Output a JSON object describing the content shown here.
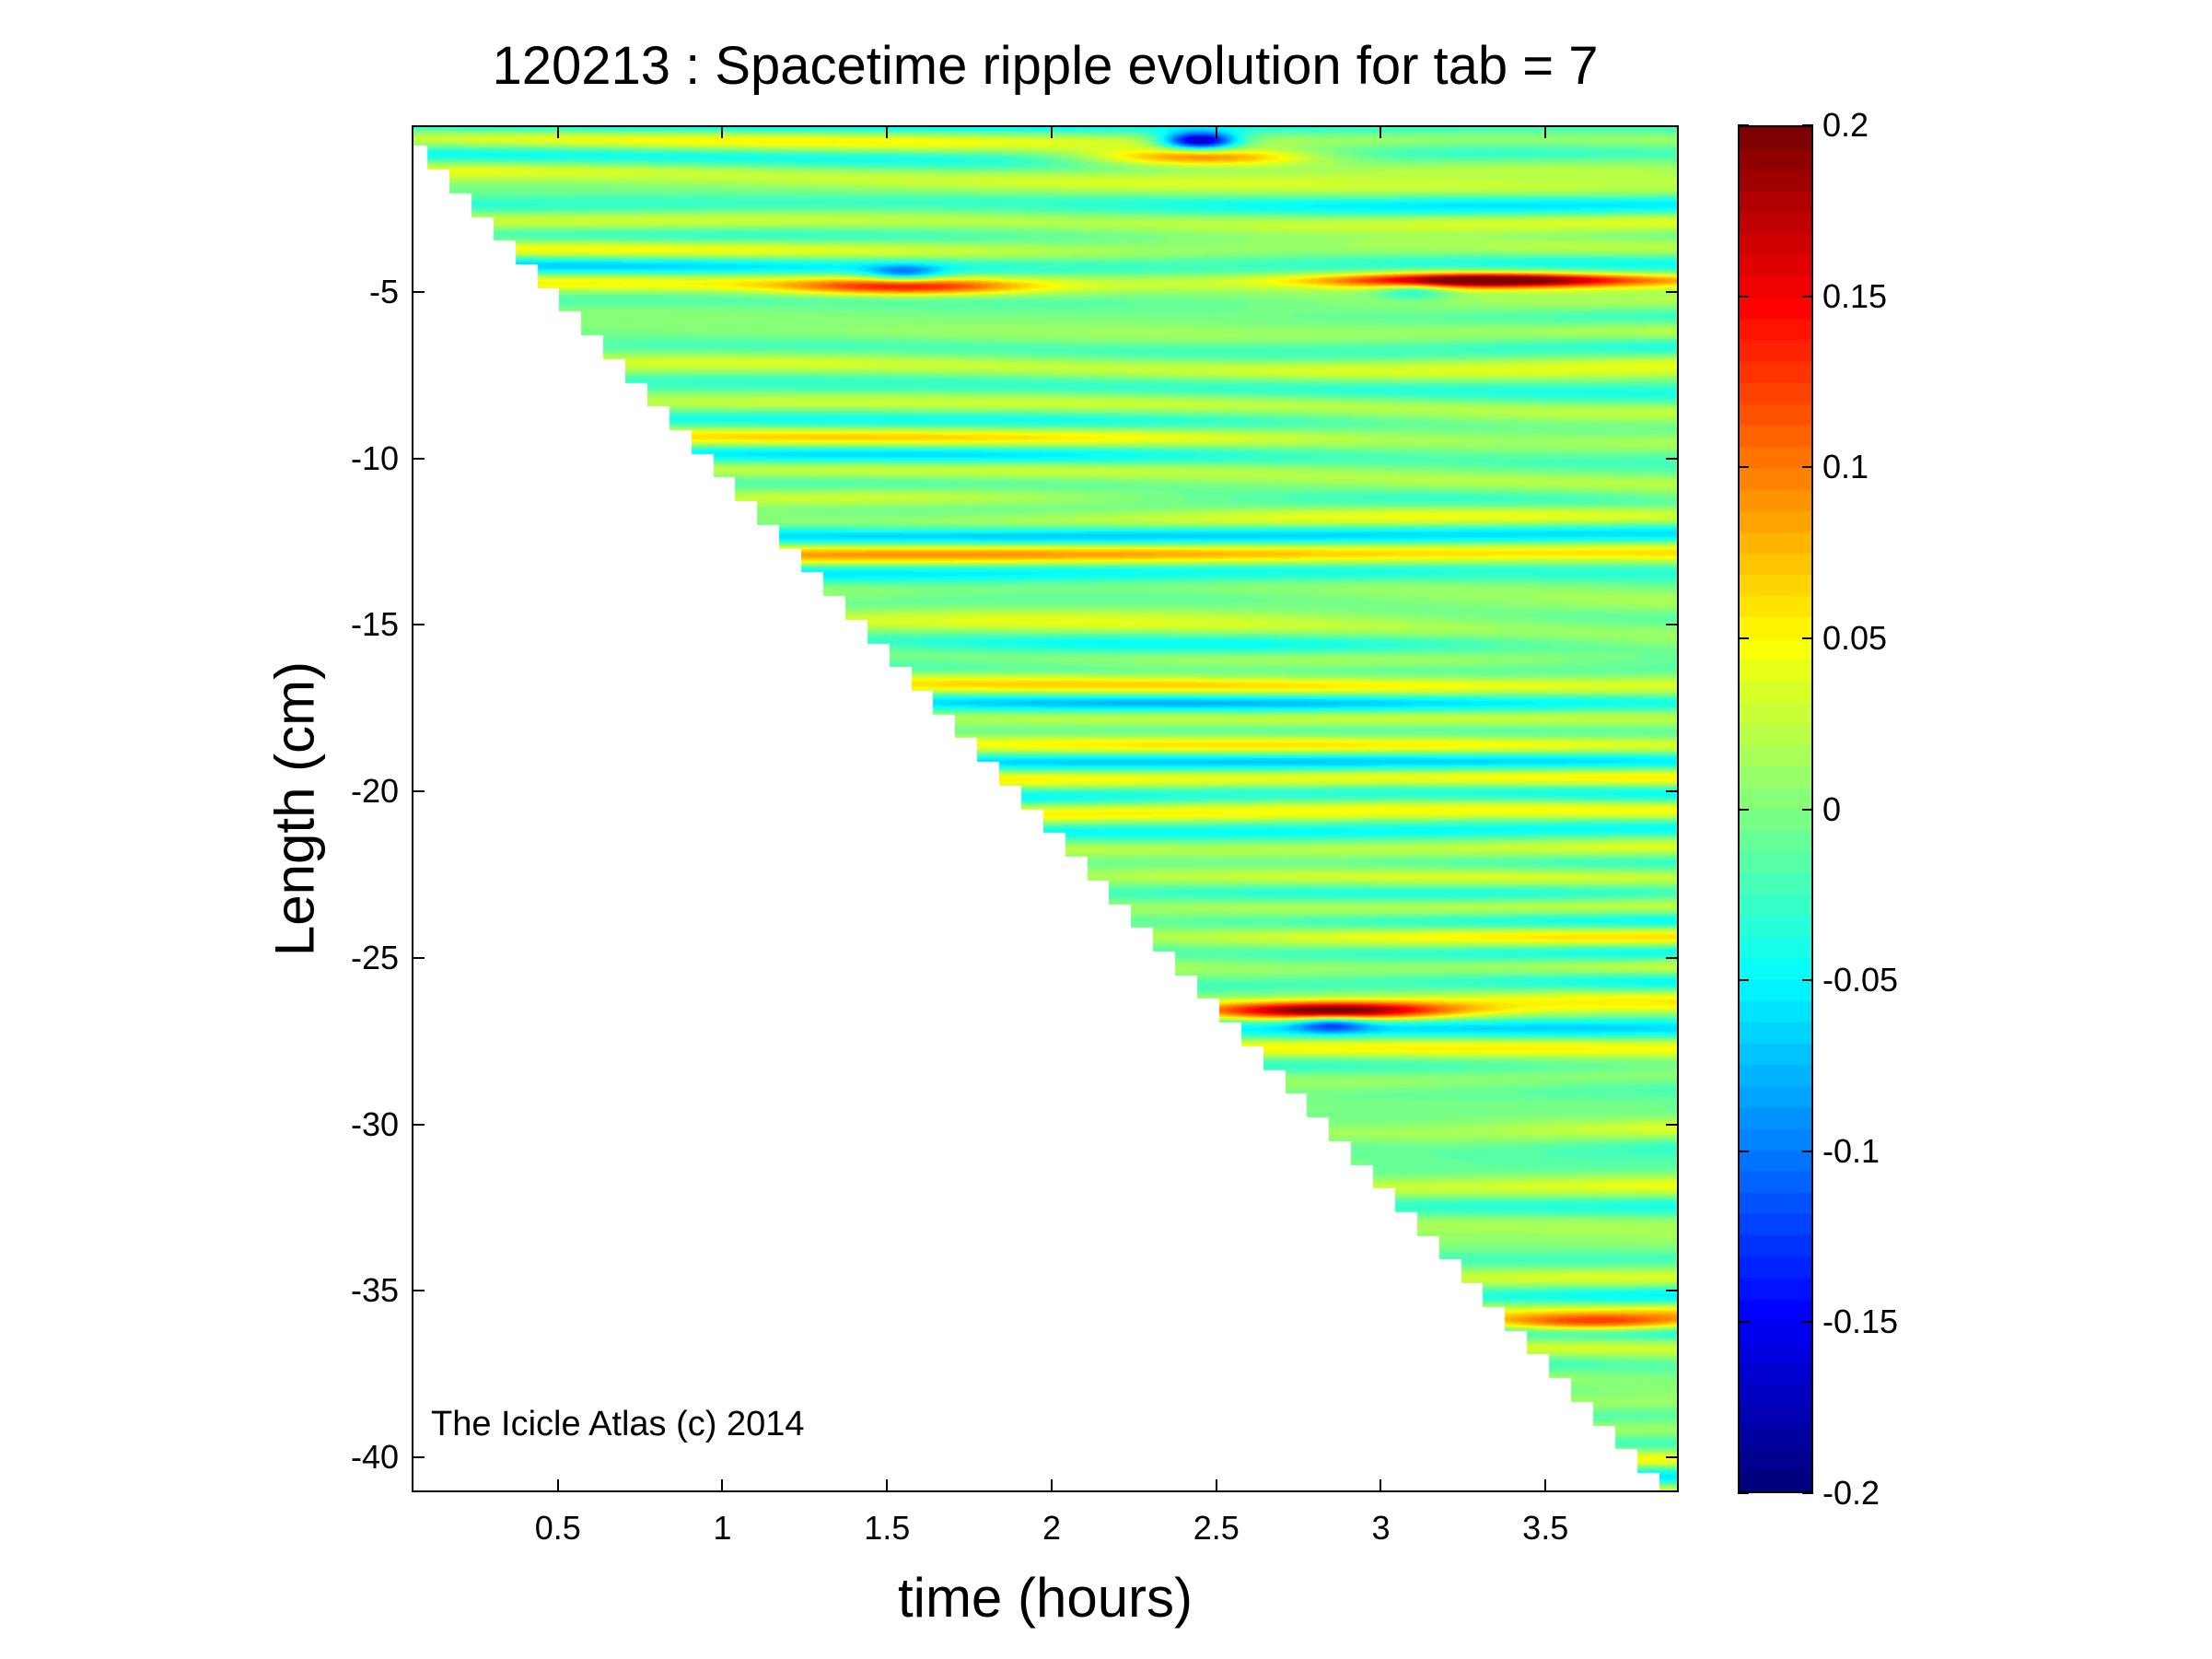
{
  "chart_data": {
    "type": "heatmap",
    "title": "120213 : Spacetime ripple evolution for tab = 7",
    "xlabel": "time (hours)",
    "ylabel": "Length (cm)",
    "xlim": [
      0.056,
      3.905
    ],
    "ylim": [
      -41.05,
      0
    ],
    "x_ticks": [
      0.5,
      1,
      1.5,
      2,
      2.5,
      3,
      3.5
    ],
    "x_tick_labels": [
      "0.5",
      "1",
      "1.5",
      "2",
      "2.5",
      "3",
      "3.5"
    ],
    "y_ticks": [
      -5,
      -10,
      -15,
      -20,
      -25,
      -30,
      -35,
      -40
    ],
    "y_tick_labels": [
      "-5",
      "-10",
      "-15",
      "-20",
      "-25",
      "-30",
      "-35",
      "-40"
    ],
    "colormap": "jet",
    "clim": [
      -0.2,
      0.2
    ],
    "colorbar_ticks": [
      0.2,
      0.15,
      0.1,
      0.05,
      0,
      -0.05,
      -0.1,
      -0.15,
      -0.2
    ],
    "colorbar_tick_labels": [
      "0.2",
      "0.15",
      "0.1",
      "0.05",
      "0",
      "-0.05",
      "-0.1",
      "-0.15",
      "-0.2"
    ],
    "growth_front_cm_per_hour": -10.65,
    "background_ripple_amplitude": 0.04,
    "ripple_wavelength_cm": 1.1,
    "features": [
      {
        "t": 2.45,
        "length": -0.4,
        "value": -0.2
      },
      {
        "t": 2.45,
        "length": -0.9,
        "value": 0.12
      },
      {
        "t": 3.3,
        "length": -4.6,
        "value": 0.12
      },
      {
        "t": 1.55,
        "length": -4.8,
        "value": 0.11
      },
      {
        "t": 1.55,
        "length": -4.4,
        "value": -0.08
      },
      {
        "t": 2.85,
        "length": -26.6,
        "value": 0.18
      },
      {
        "t": 2.85,
        "length": -27.0,
        "value": -0.08
      },
      {
        "t": 3.65,
        "length": -36.0,
        "value": 0.12
      },
      {
        "t": 3.1,
        "length": -4.9,
        "value": -0.06
      }
    ],
    "grid": false
  },
  "watermark": "The Icicle Atlas (c) 2014"
}
